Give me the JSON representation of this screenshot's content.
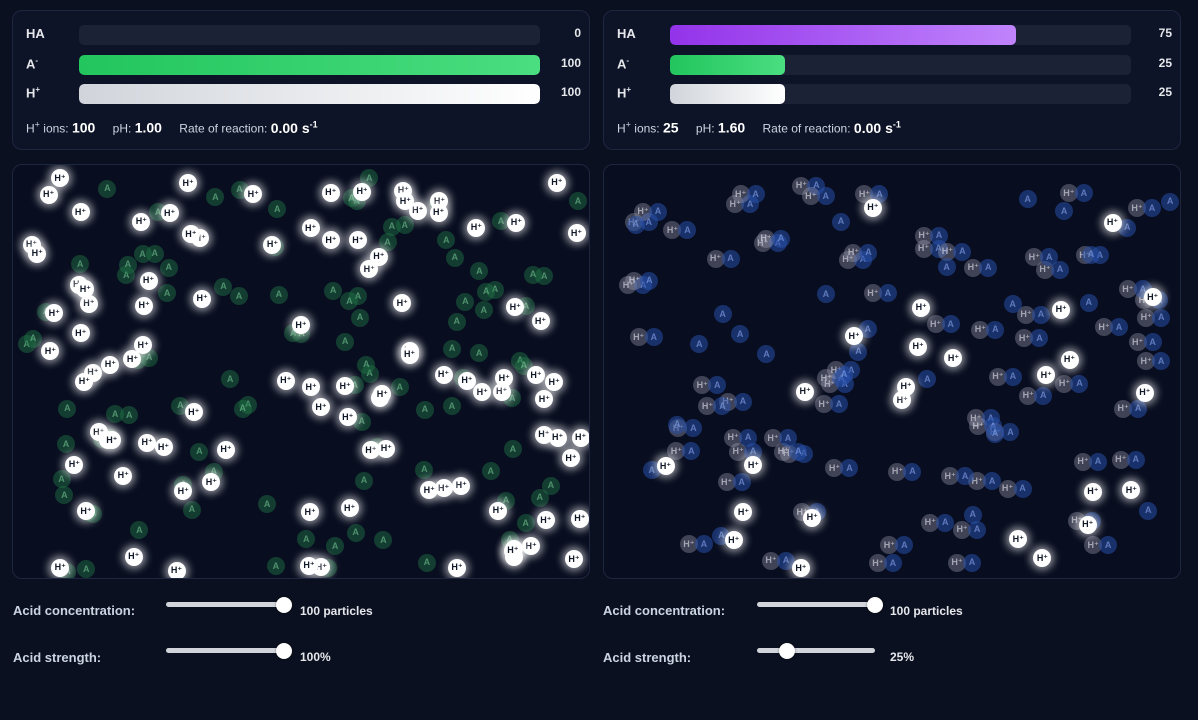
{
  "labels": {
    "ha": "HA",
    "a_base": "A",
    "a_sup": "-",
    "h_base": "H",
    "h_sup": "+",
    "ions_suffix": " ions:",
    "ph": "pH:",
    "rate": "Rate of reaction:",
    "rate_unit": "s",
    "rate_exp": "-1",
    "particle_h": "H⁺",
    "particle_a": "A"
  },
  "left": {
    "bars": {
      "ha": {
        "value": "0",
        "fraction": 0.0
      },
      "a": {
        "value": "100",
        "fraction": 1.0
      },
      "h": {
        "value": "100",
        "fraction": 1.0
      }
    },
    "ions": "100",
    "ph": "1.00",
    "rate": "0.00",
    "controls": {
      "concentration_label": "Acid concentration:",
      "concentration_value": "100 particles",
      "concentration_fraction": 1.0,
      "strength_label": "Acid strength:",
      "strength_value": "100%",
      "strength_fraction": 1.0
    }
  },
  "right": {
    "bars": {
      "ha": {
        "value": "75",
        "fraction": 0.75
      },
      "a": {
        "value": "25",
        "fraction": 0.25
      },
      "h": {
        "value": "25",
        "fraction": 0.25
      }
    },
    "ions": "25",
    "ph": "1.60",
    "rate": "0.00",
    "controls": {
      "concentration_label": "Acid concentration:",
      "concentration_value": "100 particles",
      "concentration_fraction": 1.0,
      "strength_label": "Acid strength:",
      "strength_value": "25%",
      "strength_fraction": 0.25
    }
  },
  "colors": {
    "ha_bar": "#a855f7",
    "a_bar": "#22c55e",
    "h_bar": "#f3f4f6",
    "background": "#0b1020"
  }
}
